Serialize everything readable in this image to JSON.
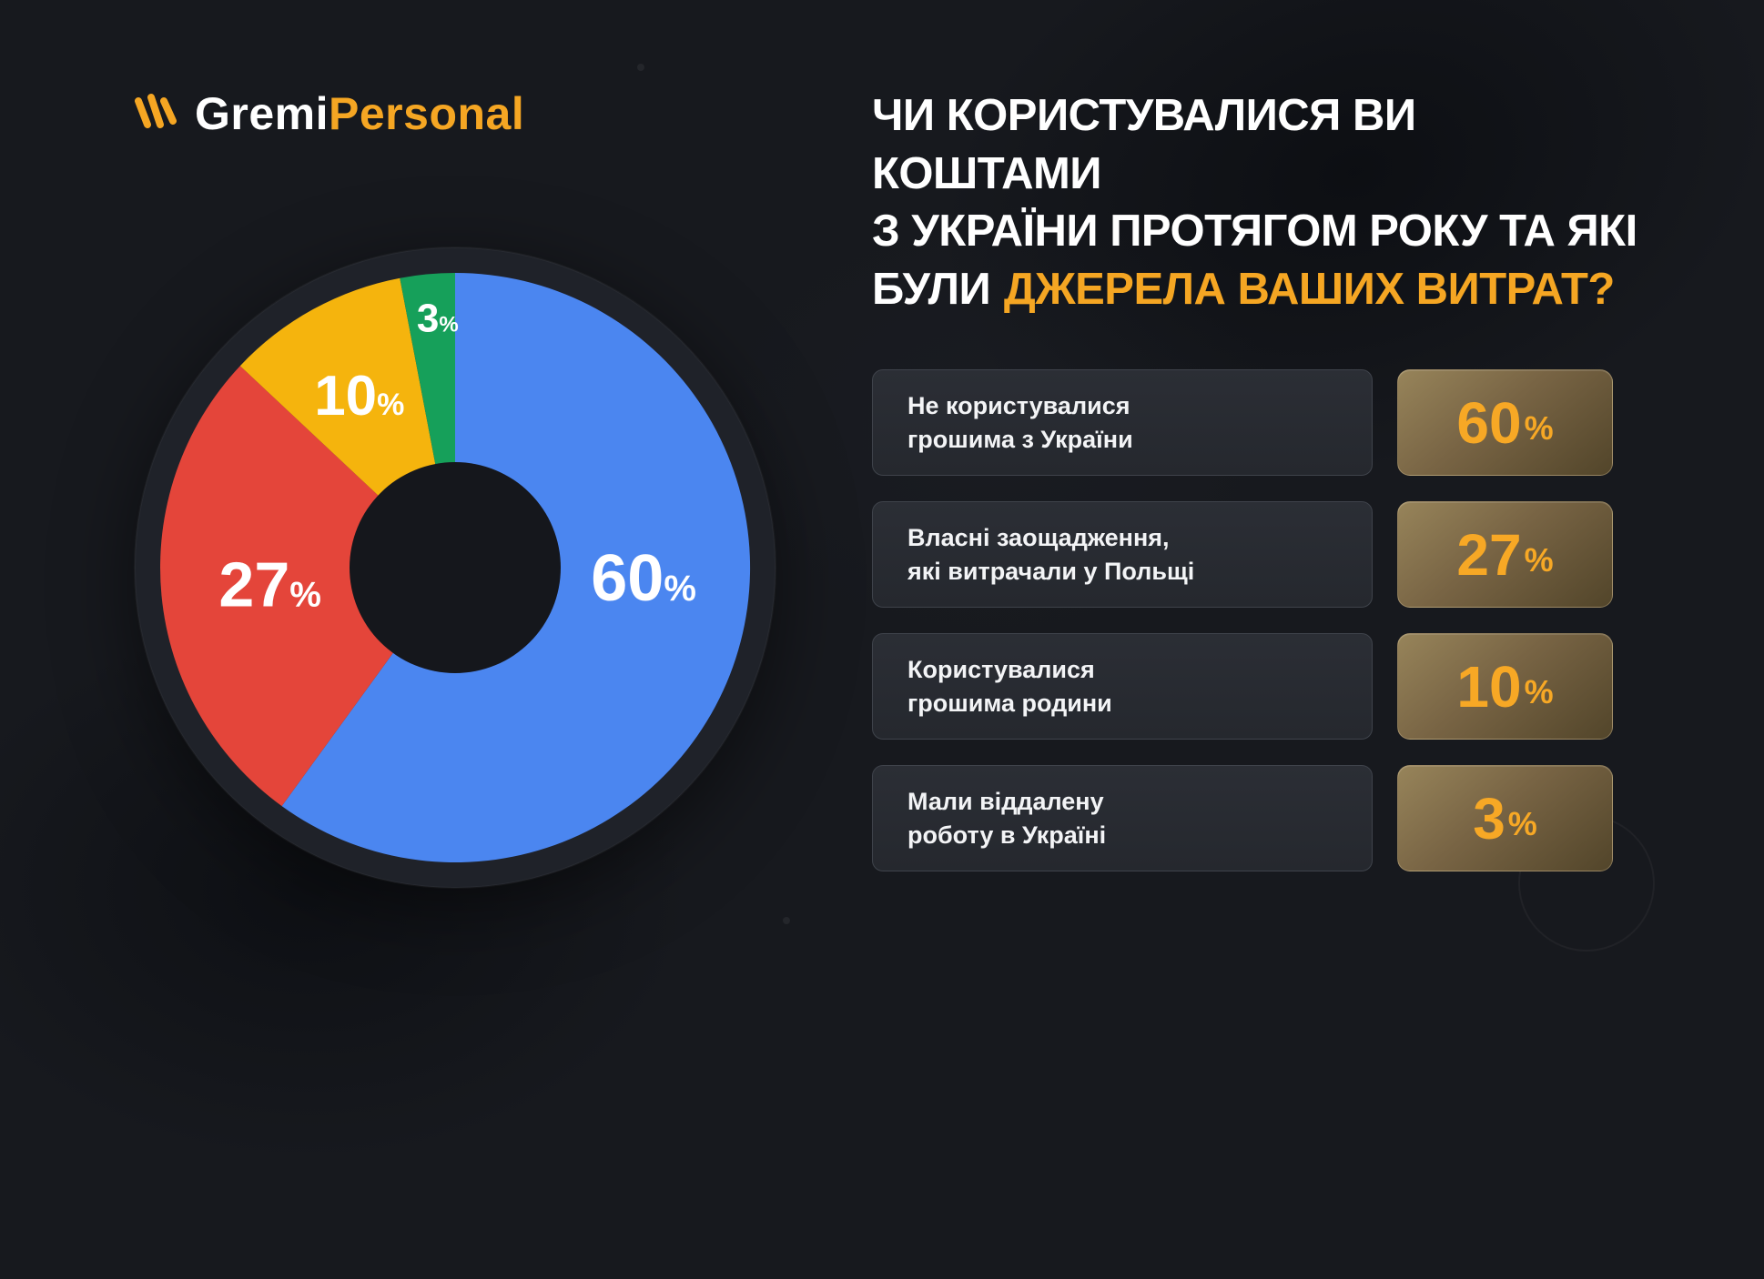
{
  "brand": {
    "name_primary": "Gremi",
    "name_secondary": "Personal"
  },
  "title": {
    "line1": "ЧИ КОРИСТУВАЛИСЯ ВИ КОШТАМИ",
    "line2": "З УКРАЇНИ ПРОТЯГОМ РОКУ ТА ЯКІ",
    "line3_white": "БУЛИ",
    "line3_accent": "ДЖЕРЕЛА ВАШИХ ВИТРАТ?"
  },
  "colors": {
    "background": "#17191e",
    "accent_orange": "#f5a623",
    "chart_container": "#1f2229",
    "chart_hole": "#15171c",
    "blue": "#4b86f0",
    "red": "#e4453a",
    "yellow": "#f5b40d",
    "green": "#16a05a"
  },
  "chart_data": {
    "type": "pie",
    "donut": true,
    "title": "Чи користувалися ви коштами з України протягом року та які були джерела ваших витрат?",
    "start_angle_deg": 0,
    "clockwise": true,
    "legend_position": "right",
    "slices": [
      {
        "label": "Не користувалися грошима з України",
        "value": 60,
        "display": "60",
        "unit": "%",
        "color": "#4b86f0"
      },
      {
        "label": "Власні заощадження, які витрачали у Польщі",
        "value": 27,
        "display": "27",
        "unit": "%",
        "color": "#e4453a"
      },
      {
        "label": "Користувалися грошима родини",
        "value": 10,
        "display": "10",
        "unit": "%",
        "color": "#f5b40d"
      },
      {
        "label": "Мали віддалену роботу в Україні",
        "value": 3,
        "display": "3",
        "unit": "%",
        "color": "#16a05a"
      }
    ]
  },
  "legend_rows": [
    {
      "label_line1": "Не користувалися",
      "label_line2": "грошима з України",
      "value": "60",
      "unit": "%"
    },
    {
      "label_line1": "Власні заощадження,",
      "label_line2": "які витрачали у Польщі",
      "value": "27",
      "unit": "%"
    },
    {
      "label_line1": "Користувалися",
      "label_line2": "грошима родини",
      "value": "10",
      "unit": "%"
    },
    {
      "label_line1": "Мали віддалену",
      "label_line2": "роботу в Україні",
      "value": "3",
      "unit": "%"
    }
  ]
}
